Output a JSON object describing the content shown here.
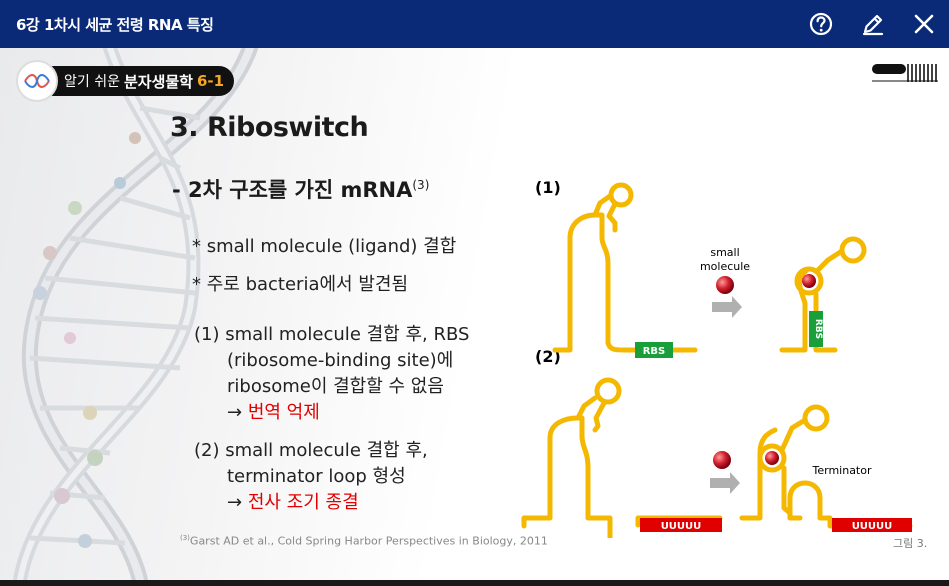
{
  "topbar": {
    "title": "6강 1차시 세균 전령 RNA 특징",
    "icons": [
      "help-icon",
      "edit-icon",
      "close-icon"
    ]
  },
  "badge": {
    "prefix": "알기 쉬운",
    "main": "분자생물학",
    "number": "6-1"
  },
  "slide": {
    "heading": "3. Riboswitch",
    "subheading": "- 2차 구조를 가진 mRNA",
    "subheading_ref": "(3)",
    "bullets": [
      "* small molecule (ligand) 결합",
      "* 주로 bacteria에서 발견됨"
    ],
    "point1": {
      "lines": [
        "(1) small molecule 결합 후, RBS",
        "(ribosome-binding site)에",
        "ribosome이 결합할 수 없음"
      ],
      "arrow": "→",
      "result": "번역 억제"
    },
    "point2": {
      "lines": [
        "(2) small molecule 결합 후,",
        "terminator loop 형성"
      ],
      "arrow": "→",
      "result": "전사 조기 종결"
    },
    "citation_ref": "(3)",
    "citation": "Garst AD et al., Cold Spring Harbor Perspectives in Biology, 2011",
    "figure_label": "그림 3."
  },
  "figure": {
    "panel1_label": "(1)",
    "panel2_label": "(2)",
    "small_molecule": [
      "small",
      "molecule"
    ],
    "rbs": "RBS",
    "uuuuu": "UUUUU",
    "terminator": "Terminator"
  },
  "colors": {
    "topbar": "#0a2a78",
    "rna": "#f5b800",
    "rbs": "#1a9e3a",
    "terminator_box": "#e00000",
    "molecule": "#c8102e",
    "accent_text": "#e10000"
  }
}
